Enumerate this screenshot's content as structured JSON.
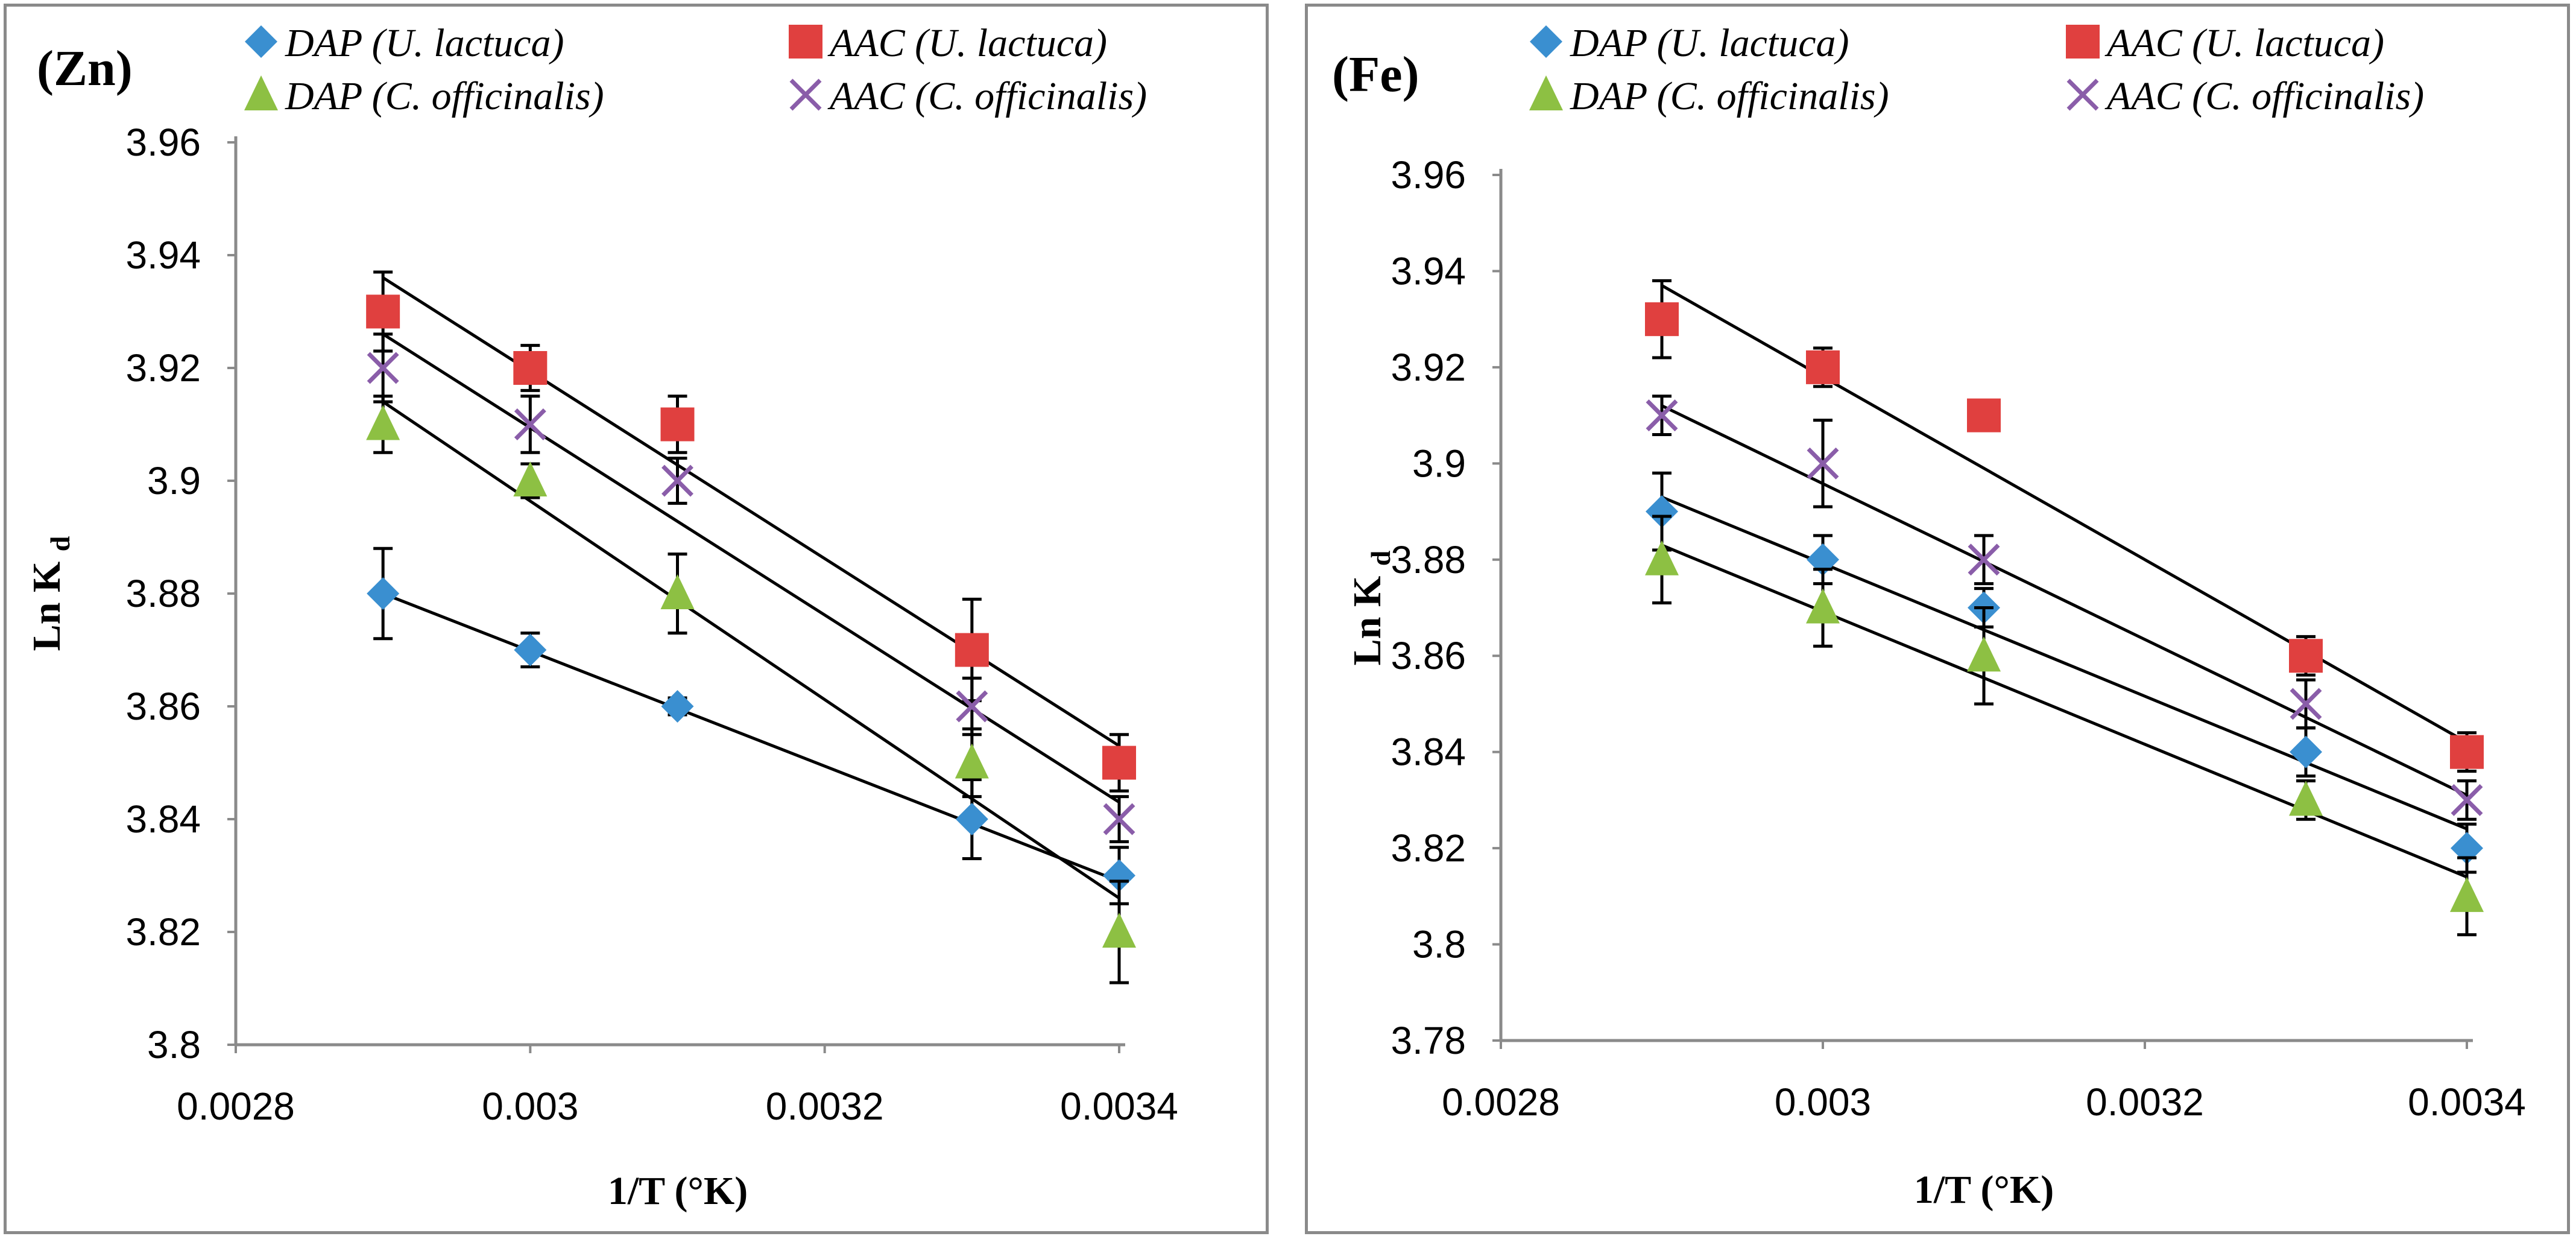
{
  "colors": {
    "dap_ulactuca": "#3A8FD0",
    "aac_ulactuca": "#E0403F",
    "dap_cofficinalis": "#8DC043",
    "aac_cofficinalis": "#8A5DA9",
    "axis": "#8a8a8a",
    "trendline": "#000000",
    "errorbar": "#000000"
  },
  "chart_data": [
    {
      "type": "scatter",
      "panel_label": "(Zn)",
      "xlabel": "1/T (°K)",
      "ylabel": "Ln K",
      "ylabel_sub": "d",
      "xlim": [
        0.0028,
        0.0034
      ],
      "ylim": [
        3.8,
        3.96
      ],
      "xticks": [
        0.0028,
        0.003,
        0.0032,
        0.0034
      ],
      "xtick_labels": [
        "0.0028",
        "0.003",
        "0.0032",
        "0.0034"
      ],
      "yticks": [
        3.8,
        3.82,
        3.84,
        3.86,
        3.88,
        3.9,
        3.92,
        3.94,
        3.96
      ],
      "ytick_labels": [
        "3.8",
        "3.82",
        "3.84",
        "3.86",
        "3.88",
        "3.9",
        "3.92",
        "3.94",
        "3.96"
      ],
      "gridlines": false,
      "legend": [
        {
          "label": "DAP (U. lactuca)",
          "marker": "diamond",
          "color": "#3A8FD0"
        },
        {
          "label": "AAC (U. lactuca)",
          "marker": "square",
          "color": "#E0403F"
        },
        {
          "label": "DAP (C. officinalis)",
          "marker": "triangle",
          "color": "#8DC043"
        },
        {
          "label": "AAC (C. officinalis)",
          "marker": "x",
          "color": "#8A5DA9"
        }
      ],
      "series": [
        {
          "name": "DAP (U. lactuca)",
          "marker": "diamond",
          "color": "#3A8FD0",
          "x": [
            0.0029,
            0.003,
            0.0031,
            0.0033,
            0.0034
          ],
          "y": [
            3.88,
            3.87,
            3.86,
            3.84,
            3.83
          ],
          "err": [
            0.008,
            0.003,
            0.0015,
            0.007,
            0.005
          ],
          "trend": [
            3.88,
            3.829
          ]
        },
        {
          "name": "AAC (U. lactuca)",
          "marker": "square",
          "color": "#E0403F",
          "x": [
            0.0029,
            0.003,
            0.0031,
            0.0033,
            0.0034
          ],
          "y": [
            3.93,
            3.92,
            3.91,
            3.87,
            3.85
          ],
          "err": [
            0.007,
            0.004,
            0.005,
            0.009,
            0.005
          ],
          "trend": [
            3.936,
            3.853
          ]
        },
        {
          "name": "DAP (C. officinalis)",
          "marker": "triangle",
          "color": "#8DC043",
          "x": [
            0.0029,
            0.003,
            0.0031,
            0.0033,
            0.0034
          ],
          "y": [
            3.91,
            3.9,
            3.88,
            3.85,
            3.82
          ],
          "err": [
            0.005,
            0.003,
            0.007,
            0.006,
            0.009
          ],
          "trend": [
            3.914,
            3.826
          ]
        },
        {
          "name": "AAC (C. officinalis)",
          "marker": "x",
          "color": "#8A5DA9",
          "x": [
            0.0029,
            0.003,
            0.0031,
            0.0033,
            0.0034
          ],
          "y": [
            3.92,
            3.91,
            3.9,
            3.86,
            3.84
          ],
          "err": [
            0.006,
            0.005,
            0.004,
            0.005,
            0.004
          ],
          "trend": [
            3.926,
            3.843
          ]
        }
      ]
    },
    {
      "type": "scatter",
      "panel_label": "(Fe)",
      "xlabel": "1/T (°K)",
      "ylabel": "Ln K",
      "ylabel_sub": "d",
      "xlim": [
        0.0028,
        0.0034
      ],
      "ylim": [
        3.78,
        3.96
      ],
      "xticks": [
        0.0028,
        0.003,
        0.0032,
        0.0034
      ],
      "xtick_labels": [
        "0.0028",
        "0.003",
        "0.0032",
        "0.0034"
      ],
      "yticks": [
        3.78,
        3.8,
        3.82,
        3.84,
        3.86,
        3.88,
        3.9,
        3.92,
        3.94,
        3.96
      ],
      "ytick_labels": [
        "3.78",
        "3.8",
        "3.82",
        "3.84",
        "3.86",
        "3.88",
        "3.9",
        "3.92",
        "3.94",
        "3.96"
      ],
      "gridlines": false,
      "legend": [
        {
          "label": "DAP (U. lactuca)",
          "marker": "diamond",
          "color": "#3A8FD0"
        },
        {
          "label": "AAC (U. lactuca)",
          "marker": "square",
          "color": "#E0403F"
        },
        {
          "label": "DAP (C. officinalis)",
          "marker": "triangle",
          "color": "#8DC043"
        },
        {
          "label": "AAC (C. officinalis)",
          "marker": "x",
          "color": "#8A5DA9"
        }
      ],
      "series": [
        {
          "name": "DAP (U. lactuca)",
          "marker": "diamond",
          "color": "#3A8FD0",
          "x": [
            0.0029,
            0.003,
            0.0031,
            0.0033,
            0.0034
          ],
          "y": [
            3.89,
            3.88,
            3.87,
            3.84,
            3.82
          ],
          "err": [
            0.008,
            0.005,
            0.004,
            0.005,
            0.005
          ],
          "trend": [
            3.893,
            3.824
          ]
        },
        {
          "name": "AAC (U. lactuca)",
          "marker": "square",
          "color": "#E0403F",
          "x": [
            0.0029,
            0.003,
            0.0031,
            0.0033,
            0.0034
          ],
          "y": [
            3.93,
            3.92,
            3.91,
            3.86,
            3.84
          ],
          "err": [
            0.008,
            0.004,
            0,
            0.004,
            0.004
          ],
          "trend": [
            3.937,
            3.842
          ]
        },
        {
          "name": "DAP (C. officinalis)",
          "marker": "triangle",
          "color": "#8DC043",
          "x": [
            0.0029,
            0.003,
            0.0031,
            0.0033,
            0.0034
          ],
          "y": [
            3.88,
            3.87,
            3.86,
            3.83,
            3.81
          ],
          "err": [
            0.009,
            0.008,
            0.01,
            0.004,
            0.008
          ],
          "trend": [
            3.883,
            3.814
          ]
        },
        {
          "name": "AAC (C. officinalis)",
          "marker": "x",
          "color": "#8A5DA9",
          "x": [
            0.0029,
            0.003,
            0.0031,
            0.0033,
            0.0034
          ],
          "y": [
            3.91,
            3.9,
            3.88,
            3.85,
            3.83
          ],
          "err": [
            0.004,
            0.009,
            0.005,
            0.005,
            0.004
          ],
          "trend": [
            3.912,
            3.831
          ]
        }
      ]
    }
  ]
}
